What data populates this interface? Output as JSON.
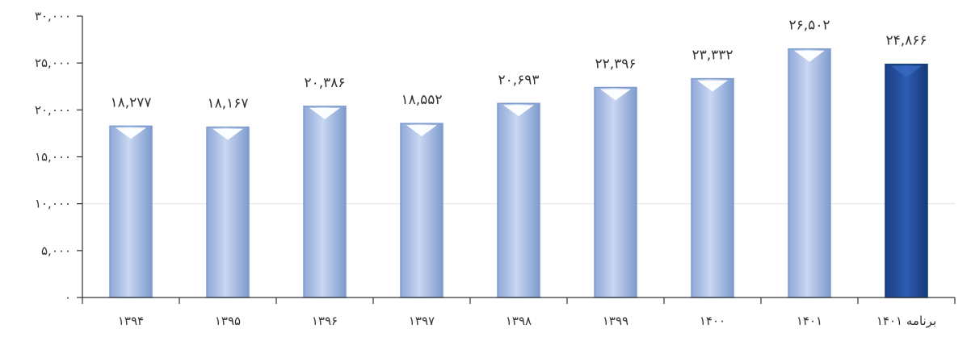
{
  "chart_data": {
    "type": "bar",
    "title": "",
    "xlabel": "",
    "ylabel": "",
    "ylim": [
      0,
      30000
    ],
    "y_ticks": [
      0,
      5000,
      10000,
      15000,
      20000,
      25000,
      30000
    ],
    "y_tick_labels": [
      "۰",
      "۵,۰۰۰",
      "۱۰,۰۰۰",
      "۱۵,۰۰۰",
      "۲۰,۰۰۰",
      "۲۵,۰۰۰",
      "۳۰,۰۰۰"
    ],
    "grid": true,
    "legend": "none",
    "categories": [
      "۱۳۹۴",
      "۱۳۹۵",
      "۱۳۹۶",
      "۱۳۹۷",
      "۱۳۹۸",
      "۱۳۹۹",
      "۱۴۰۰",
      "۱۴۰۱",
      "برنامه ۱۴۰۱"
    ],
    "values": [
      18277,
      18167,
      20386,
      18552,
      20693,
      22396,
      23332,
      26502,
      24866
    ],
    "data_labels": [
      "۱۸,۲۷۷",
      "۱۸,۱۶۷",
      "۲۰,۳۸۶",
      "۱۸,۵۵۲",
      "۲۰,۶۹۳",
      "۲۲,۳۹۶",
      "۲۳,۳۳۲",
      "۲۶,۵۰۲",
      "۲۴,۸۶۶"
    ],
    "highlight_index": 8,
    "colors": {
      "bar": "#a9bfe3",
      "bar_dark": "#7f9ccf",
      "highlight": "#1f4b99",
      "highlight_dark": "#163a7a",
      "axis": "#333333",
      "grid": "#e3e3e3"
    }
  }
}
